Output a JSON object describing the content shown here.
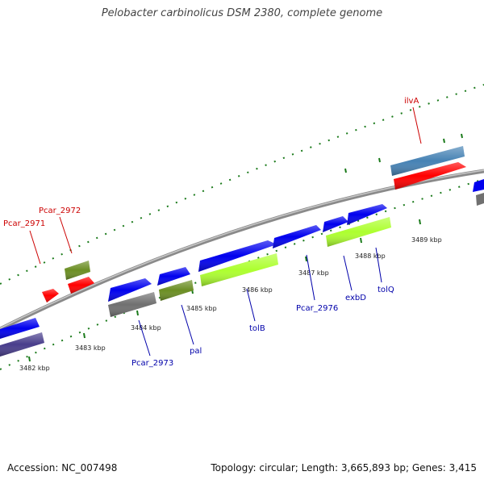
{
  "title": "Pelobacter carbinolicus DSM 2380, complete genome",
  "footer": {
    "accession": "Accession: NC_007498",
    "summary": "Topology: circular; Length: 3,665,893 bp; Genes: 3,415"
  },
  "ticks": [
    "3482 kbp",
    "3483 kbp",
    "3484 kbp",
    "3485 kbp",
    "3486 kbp",
    "3487 kbp",
    "3488 kbp",
    "3489 kbp"
  ],
  "gene_labels": {
    "pcar_2971": "Pcar_2971",
    "pcar_2972": "Pcar_2972",
    "ilvA": "ilvA",
    "pcar_2973": "Pcar_2973",
    "pal": "pal",
    "tolB": "tolB",
    "pcar_2976": "Pcar_2976",
    "exbD": "exbD",
    "tolQ": "tolQ"
  },
  "colors": {
    "red_label": "#cc0000",
    "blue_label": "#0000aa",
    "cds_blue": "#0000ee",
    "gene_red": "#ff0000",
    "olive": "#6b8e23",
    "lime": "#adff2f",
    "gray": "#707070",
    "steel": "#4682b4",
    "slate": "#483d8b",
    "tick_green": "#1a7a1a"
  }
}
